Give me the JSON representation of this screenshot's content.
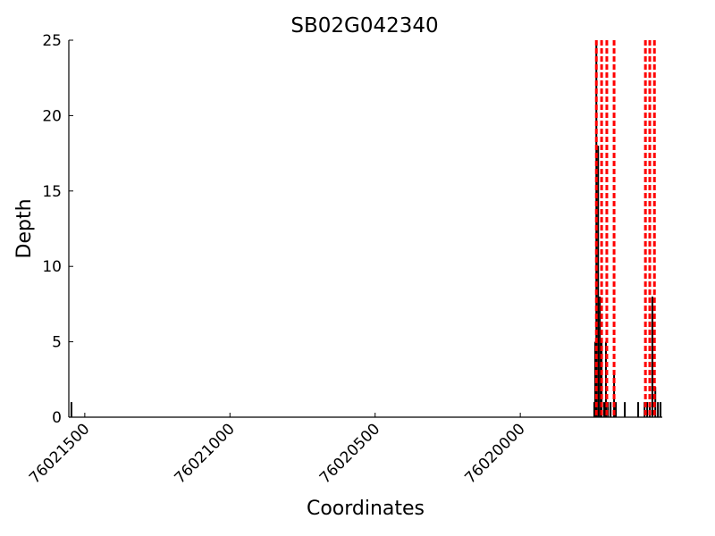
{
  "chart_data": {
    "type": "bar",
    "title": "SB02G042340",
    "x_label": "Coordinates",
    "y_label": "Depth",
    "x": [
      76021546,
      76019745,
      76019742,
      76019738,
      76019732,
      76019726,
      76019720,
      76019711,
      76019705,
      76019698,
      76019689,
      76019677,
      76019671,
      76019640,
      76019594,
      76019572,
      76019563,
      76019554,
      76019545,
      76019535,
      76019526,
      76019517
    ],
    "values": [
      1,
      1,
      5,
      25,
      18,
      8,
      5,
      1,
      5,
      1,
      1,
      3,
      1,
      1,
      1,
      1,
      1,
      1,
      8,
      2,
      1,
      1
    ],
    "color": "#000000",
    "markers": {
      "color": "#ff0000",
      "x": [
        76019738,
        76019720,
        76019702,
        76019677,
        76019569,
        76019554,
        76019538
      ]
    },
    "xlim": [
      76021555,
      76019511
    ],
    "xticks": [
      76021500,
      76021000,
      76020500,
      76020000
    ],
    "ylim": [
      0,
      25
    ],
    "yticks": [
      0,
      5,
      10,
      15,
      20,
      25
    ]
  }
}
